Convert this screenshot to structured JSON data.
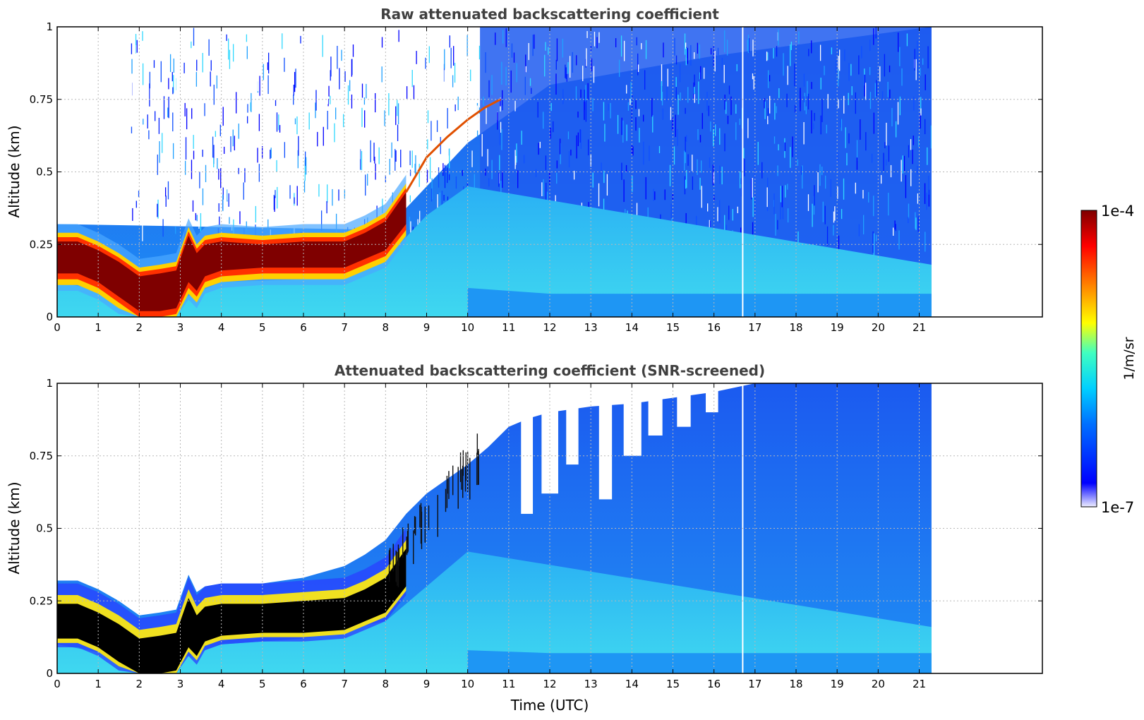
{
  "figure": {
    "colorbar": {
      "label": "1/m/sr",
      "max_label": "1e-4",
      "min_label": "1e-7",
      "colormap": "jet",
      "scale": "log"
    }
  },
  "chart_data": [
    {
      "type": "heatmap",
      "title": "Raw attenuated backscattering coefficient",
      "xlabel": "",
      "ylabel": "Altitude (km)",
      "xlim": [
        0,
        24
      ],
      "ylim": [
        0,
        1
      ],
      "x_ticks": [
        "0",
        "1",
        "2",
        "3",
        "4",
        "5",
        "6",
        "7",
        "8",
        "9",
        "10",
        "11",
        "12",
        "13",
        "14",
        "15",
        "16",
        "17",
        "18",
        "19",
        "20",
        "21"
      ],
      "y_ticks": [
        "0",
        "0.25",
        "0.5",
        "0.75",
        "1"
      ],
      "grid": true,
      "data_end_time": 21.3,
      "gap_time": 16.7,
      "boundary_layer_top": {
        "x": [
          0,
          0.5,
          1,
          1.5,
          2,
          2.5,
          2.9,
          3.2,
          3.4,
          3.6,
          4,
          5,
          6,
          7,
          7.5,
          8,
          8.5
        ],
        "y": [
          0.26,
          0.26,
          0.23,
          0.19,
          0.14,
          0.15,
          0.16,
          0.28,
          0.22,
          0.25,
          0.26,
          0.25,
          0.26,
          0.26,
          0.29,
          0.33,
          0.43
        ]
      },
      "boundary_layer_bottom": {
        "x": [
          0,
          0.5,
          1,
          1.5,
          2,
          2.5,
          2.9,
          3.2,
          3.4,
          3.6,
          4,
          5,
          6,
          7,
          7.5,
          8,
          8.5
        ],
        "y": [
          0.13,
          0.13,
          0.1,
          0.05,
          0.0,
          0.0,
          0.01,
          0.1,
          0.07,
          0.12,
          0.14,
          0.15,
          0.15,
          0.15,
          0.18,
          0.21,
          0.3
        ]
      },
      "aerosol_rise": {
        "x": [
          8.5,
          9,
          9.5,
          10,
          10.4,
          10.8
        ],
        "y": [
          0.43,
          0.55,
          0.62,
          0.68,
          0.72,
          0.75
        ]
      },
      "background_level": {
        "x": [
          0,
          8,
          10,
          12,
          16,
          21.3
        ],
        "y": [
          0.32,
          0.3,
          0.6,
          0.8,
          0.9,
          1.0
        ]
      }
    },
    {
      "type": "heatmap",
      "title": "Attenuated backscattering coefficient (SNR-screened)",
      "xlabel": "Time (UTC)",
      "ylabel": "Altitude (km)",
      "xlim": [
        0,
        24
      ],
      "ylim": [
        0,
        1
      ],
      "x_ticks": [
        "0",
        "1",
        "2",
        "3",
        "4",
        "5",
        "6",
        "7",
        "8",
        "9",
        "10",
        "11",
        "12",
        "13",
        "14",
        "15",
        "16",
        "17",
        "18",
        "19",
        "20",
        "21"
      ],
      "y_ticks": [
        "0",
        "0.25",
        "0.5",
        "0.75",
        "1"
      ],
      "grid": true,
      "data_end_time": 21.3,
      "gap_time": 16.7,
      "signal_top": {
        "x": [
          0,
          0.5,
          1,
          1.5,
          2,
          2.5,
          2.9,
          3.2,
          3.4,
          3.6,
          4,
          5,
          6,
          7,
          7.5,
          8,
          8.5,
          9,
          9.5,
          10,
          10.5,
          11,
          11.5,
          12,
          13,
          14,
          15,
          16,
          17,
          18,
          21.3
        ],
        "y": [
          0.32,
          0.32,
          0.29,
          0.25,
          0.2,
          0.21,
          0.22,
          0.34,
          0.28,
          0.3,
          0.31,
          0.31,
          0.33,
          0.37,
          0.41,
          0.46,
          0.55,
          0.62,
          0.67,
          0.72,
          0.78,
          0.85,
          0.88,
          0.9,
          0.92,
          0.93,
          0.95,
          0.97,
          1.0,
          1.0,
          1.0
        ]
      },
      "boundary_layer_top": {
        "x": [
          0,
          0.5,
          1,
          1.5,
          2,
          2.5,
          2.9,
          3.2,
          3.4,
          3.6,
          4,
          5,
          6,
          7,
          7.5,
          8,
          8.5
        ],
        "y": [
          0.24,
          0.24,
          0.21,
          0.17,
          0.12,
          0.13,
          0.14,
          0.26,
          0.2,
          0.23,
          0.24,
          0.24,
          0.25,
          0.26,
          0.29,
          0.33,
          0.43
        ]
      },
      "boundary_layer_bottom": {
        "x": [
          0,
          0.5,
          1,
          1.5,
          2,
          2.5,
          2.9,
          3.2,
          3.4,
          3.6,
          4,
          5,
          6,
          7,
          7.5,
          8,
          8.5
        ],
        "y": [
          0.12,
          0.12,
          0.09,
          0.04,
          0.0,
          0.0,
          0.01,
          0.09,
          0.06,
          0.11,
          0.13,
          0.14,
          0.14,
          0.15,
          0.18,
          0.21,
          0.3
        ]
      },
      "core_color": "#000000"
    }
  ]
}
